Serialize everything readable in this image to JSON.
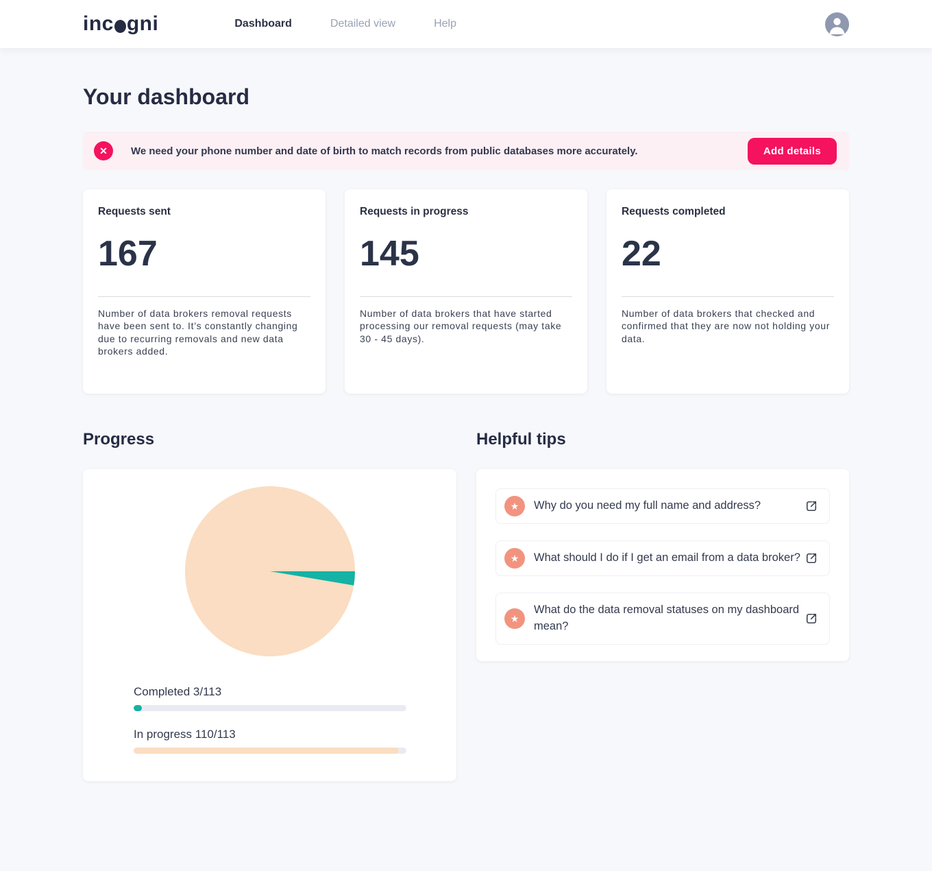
{
  "colors": {
    "accent_pink": "#F5125F",
    "teal": "#14B3A5",
    "peach": "#FADDC2",
    "coral": "#F2937F",
    "navy": "#262C44"
  },
  "header": {
    "logo_pre": "inc",
    "logo_post": "gni",
    "nav": [
      {
        "label": "Dashboard",
        "active": true
      },
      {
        "label": "Detailed view",
        "active": false
      },
      {
        "label": "Help",
        "active": false
      }
    ]
  },
  "page": {
    "title": "Your dashboard"
  },
  "banner": {
    "message": "We need your phone number and date of birth to match records from public databases more accurately.",
    "button_label": "Add details"
  },
  "stats": [
    {
      "title": "Requests sent",
      "value": "167",
      "description": "Number of data brokers removal requests have been sent to. It’s constantly changing due to recurring removals and new data brokers added."
    },
    {
      "title": "Requests in progress",
      "value": "145",
      "description": "Number of data brokers that have started processing our removal requests (may take 30 - 45 days)."
    },
    {
      "title": "Requests completed",
      "value": "22",
      "description": "Number of data brokers that checked and confirmed that they are now not holding your data."
    }
  ],
  "progress": {
    "section_title": "Progress",
    "completed_label": "Completed 3/113",
    "in_progress_label": "In progress 110/113",
    "completed": 3,
    "in_progress": 110,
    "total": 113
  },
  "chart_data": {
    "type": "pie",
    "title": "Progress",
    "total": 113,
    "slices": [
      {
        "label": "In progress",
        "value": 110,
        "color": "#FADDC2"
      },
      {
        "label": "Completed",
        "value": 3,
        "color": "#14B3A5"
      }
    ],
    "start_angle_deg": 0,
    "direction": "clockwise-from-east"
  },
  "tips": {
    "section_title": "Helpful tips",
    "items": [
      {
        "text": "Why do you need my full name and address?"
      },
      {
        "text": "What should I do if I get an email from a data broker?"
      },
      {
        "text": "What do the data removal statuses on my dashboard mean?"
      }
    ]
  }
}
